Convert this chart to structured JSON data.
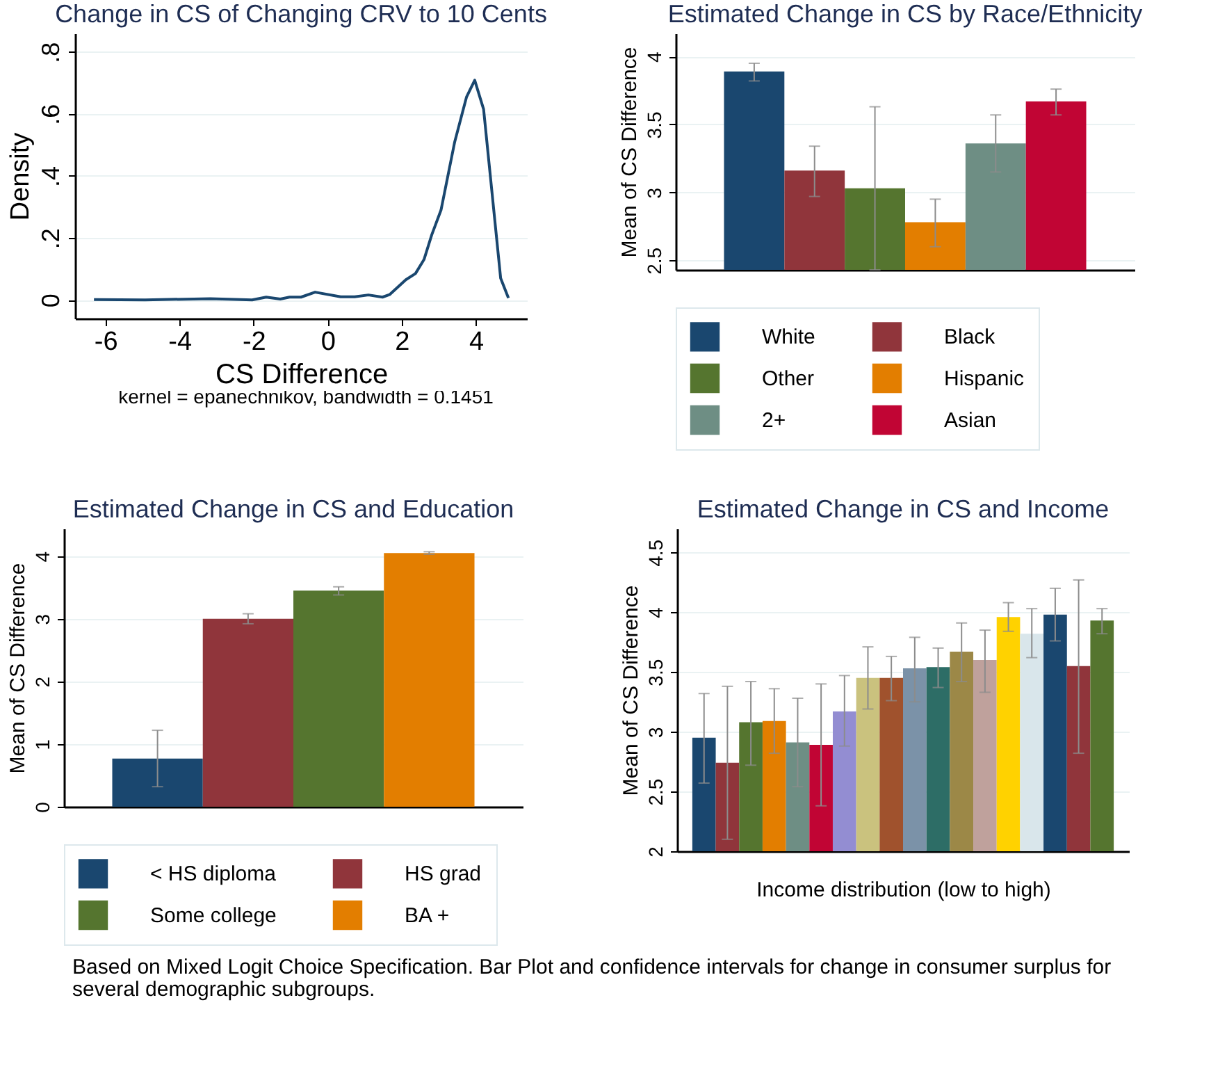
{
  "chart_data": [
    {
      "type": "line",
      "title": "Change in CS of Changing CRV to 10 Cents",
      "xlabel": "CS Difference",
      "ylabel": "Density",
      "annotations": [
        "kernel = epanechnikov, bandwidth = 0.1451"
      ],
      "xlim": [
        -6.82,
        5.38
      ],
      "ylim": [
        -0.06,
        0.86
      ],
      "xticks": [
        -6,
        -4,
        -2,
        0,
        2,
        4
      ],
      "yticks": [
        0,
        {
          "value": 0.2,
          "label": ".2"
        },
        {
          "value": 0.4,
          "label": ".4"
        },
        {
          "value": 0.6,
          "label": ".6"
        },
        {
          "value": 0.8,
          "label": ".8"
        }
      ],
      "grid": "y",
      "marker": "none",
      "line_style": "solid",
      "series": [
        {
          "color": "#1a476f",
          "x": [
            -6.31,
            -4.93,
            -3.17,
            -2.04,
            -1.66,
            -1.28,
            -1.03,
            -0.72,
            -0.34,
            0.35,
            0.73,
            1.1,
            1.48,
            1.67,
            2.11,
            2.37,
            2.6,
            2.81,
            3.06,
            3.43,
            3.75,
            3.97,
            4.21,
            4.67,
            4.88
          ],
          "values": [
            0.001,
            0,
            0.004,
            0,
            0.009,
            0.003,
            0.009,
            0.009,
            0.025,
            0.01,
            0.01,
            0.016,
            0.009,
            0.017,
            0.065,
            0.085,
            0.13,
            0.21,
            0.29,
            0.51,
            0.655,
            0.709,
            0.615,
            0.07,
            0.006
          ]
        }
      ]
    },
    {
      "type": "bar",
      "title": "Estimated Change in CS by Race/Ethnicity",
      "ylabel": "Mean of CS Difference",
      "categories": [
        null
      ],
      "ylim": [
        2.43,
        4.17
      ],
      "yticks": [
        2.5,
        3,
        3.5,
        4
      ],
      "grid": "y",
      "legend": "bottom",
      "series": [
        {
          "name": "White",
          "color": "#1a476f",
          "values": [
            3.89
          ],
          "errors": [
            [
              3.82,
              3.95
            ]
          ]
        },
        {
          "name": "Black",
          "color": "#90353b",
          "values": [
            3.16
          ],
          "errors": [
            [
              2.97,
              3.34
            ]
          ]
        },
        {
          "name": "Other",
          "color": "#55752f",
          "values": [
            3.03
          ],
          "errors": [
            [
              2.43,
              3.63
            ]
          ]
        },
        {
          "name": "Hispanic",
          "color": "#e37e00",
          "values": [
            2.78
          ],
          "errors": [
            [
              2.6,
              2.95
            ]
          ]
        },
        {
          "name": "2+",
          "color": "#6e8e84",
          "values": [
            3.36
          ],
          "errors": [
            [
              3.15,
              3.57
            ]
          ]
        },
        {
          "name": "Asian",
          "color": "#c10534",
          "values": [
            3.67
          ],
          "errors": [
            [
              3.57,
              3.76
            ]
          ]
        }
      ]
    },
    {
      "type": "bar",
      "title": "Estimated Change in CS and Education",
      "ylabel": "Mean of CS Difference",
      "categories": [
        null
      ],
      "ylim": [
        0,
        4.44
      ],
      "yticks": [
        0,
        1,
        2,
        3,
        4
      ],
      "grid": "y",
      "legend": "bottom",
      "series": [
        {
          "name": "< HS diploma",
          "color": "#1a476f",
          "values": [
            0.77
          ],
          "errors": [
            [
              0.32,
              1.22
            ]
          ]
        },
        {
          "name": "HS grad",
          "color": "#90353b",
          "values": [
            3.0
          ],
          "errors": [
            [
              2.92,
              3.08
            ]
          ]
        },
        {
          "name": "Some college",
          "color": "#55752f",
          "values": [
            3.45
          ],
          "errors": [
            [
              3.38,
              3.51
            ]
          ]
        },
        {
          "name": "BA +",
          "color": "#e37e00",
          "values": [
            4.05
          ],
          "errors": [
            [
              4.03,
              4.07
            ]
          ]
        }
      ]
    },
    {
      "type": "bar",
      "title": "Estimated Change in CS and Income",
      "xlabel": "Income distribution (low to high)",
      "ylabel": "Mean of CS Difference",
      "annotations": [
        "Based on Mixed Logit Choice Specification. Bar Plot and confidence intervals for change in consumer surplus for several demographic subgroups."
      ],
      "categories": [
        null,
        null,
        null,
        null,
        null,
        null,
        null,
        null,
        null,
        null,
        null,
        null,
        null,
        null,
        null,
        null,
        null,
        null
      ],
      "ylim": [
        2,
        4.7
      ],
      "yticks": [
        2,
        2.5,
        3,
        3.5,
        4,
        4.5
      ],
      "grid": "y",
      "values": [
        2.95,
        2.74,
        3.08,
        3.09,
        2.91,
        2.89,
        3.17,
        3.45,
        3.45,
        3.53,
        3.54,
        3.67,
        3.6,
        3.96,
        3.82,
        3.98,
        3.55,
        3.93
      ],
      "errors": [
        [
          2.57,
          3.32
        ],
        [
          2.1,
          3.38
        ],
        [
          2.72,
          3.42
        ],
        [
          2.82,
          3.36
        ],
        [
          2.54,
          3.28
        ],
        [
          2.38,
          3.4
        ],
        [
          2.88,
          3.47
        ],
        [
          3.19,
          3.71
        ],
        [
          3.26,
          3.63
        ],
        [
          3.25,
          3.79
        ],
        [
          3.37,
          3.7
        ],
        [
          3.42,
          3.91
        ],
        [
          3.33,
          3.85
        ],
        [
          3.84,
          4.08
        ],
        [
          3.62,
          4.03
        ],
        [
          3.76,
          4.2
        ],
        [
          2.82,
          4.27
        ],
        [
          3.82,
          4.03
        ]
      ],
      "colors": [
        "#1a476f",
        "#90353b",
        "#55752f",
        "#e37e00",
        "#6e8e84",
        "#c10534",
        "#938dd2",
        "#cac27e",
        "#a0522d",
        "#7b92a8",
        "#2d6d66",
        "#9c8847",
        "#bfa19c",
        "#ffd200",
        "#d9e6eb",
        "#1a476f",
        "#90353b",
        "#55752f"
      ]
    }
  ]
}
